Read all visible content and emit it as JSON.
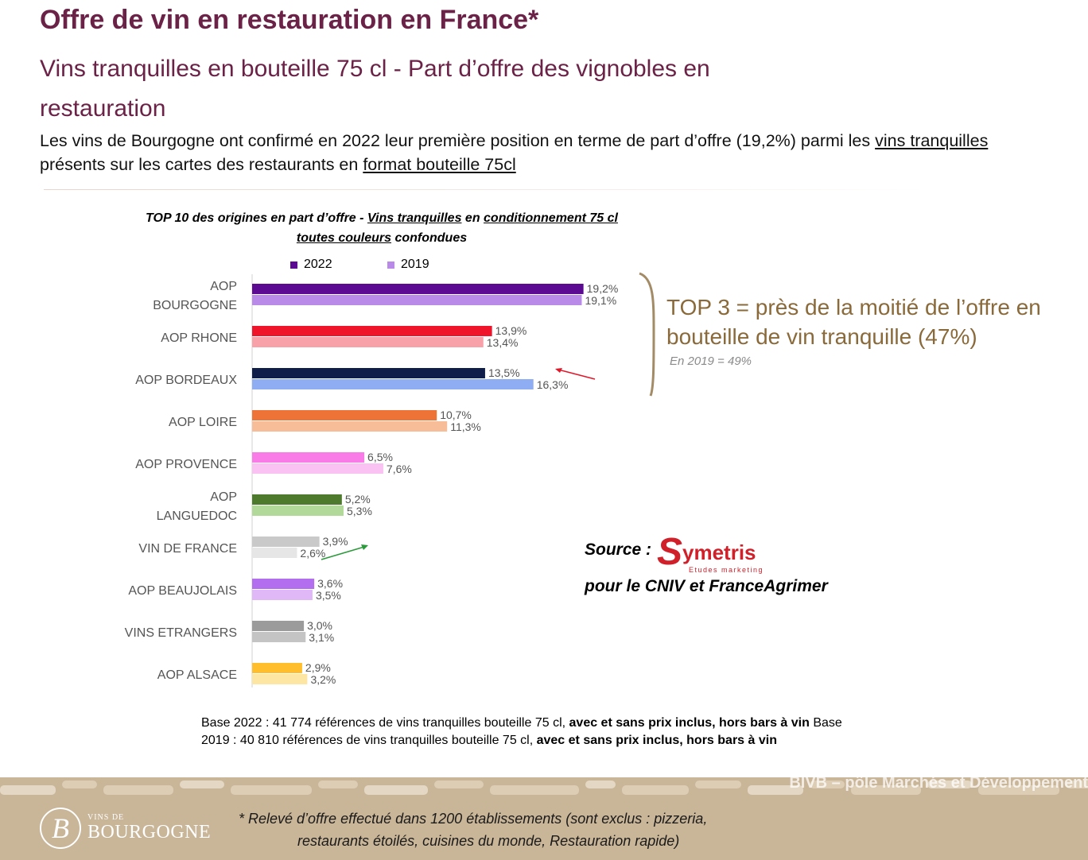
{
  "header": {
    "title": "Offre de vin en restauration en France*",
    "subtitle": "Vins tranquilles en bouteille 75 cl - Part d’offre des vignobles en restauration",
    "intro_1": "Les vins de Bourgogne ont confirmé en 2022 leur première position en terme de part d’offre (19,2%) parmi les ",
    "intro_u1": "vins tranquilles",
    "intro_2": " présents sur les cartes des restaurants en ",
    "intro_u2": "format bouteille 75cl"
  },
  "chart_title": {
    "part1": "TOP 10 des origines en part d’offre - ",
    "u1": "Vins tranquilles",
    "part2": " en ",
    "u2": "conditionnement 75 cl",
    "u3": "toutes couleurs",
    "part3": " confondues"
  },
  "chart_data": {
    "type": "bar",
    "orientation": "horizontal",
    "title": "TOP 10 des origines en part d’offre - Vins tranquilles en conditionnement 75 cl toutes couleurs confondues",
    "legend_position": "top",
    "categories": [
      "AOP BOURGOGNE",
      "AOP RHONE",
      "AOP BORDEAUX",
      "AOP LOIRE",
      "AOP PROVENCE",
      "AOP LANGUEDOC",
      "VIN DE FRANCE",
      "AOP BEAUJOLAIS",
      "VINS ETRANGERS",
      "AOP ALSACE"
    ],
    "category_lines": [
      [
        "AOP",
        "BOURGOGNE"
      ],
      [
        "AOP RHONE"
      ],
      [
        "AOP BORDEAUX"
      ],
      [
        "AOP LOIRE"
      ],
      [
        "AOP PROVENCE"
      ],
      [
        "AOP",
        "LANGUEDOC"
      ],
      [
        "VIN DE FRANCE"
      ],
      [
        "AOP BEAUJOLAIS"
      ],
      [
        "VINS ETRANGERS"
      ],
      [
        "AOP ALSACE"
      ]
    ],
    "series": [
      {
        "name": "2022",
        "values": [
          19.2,
          13.9,
          13.5,
          10.7,
          6.5,
          5.2,
          3.9,
          3.6,
          3.0,
          2.9
        ],
        "labels": [
          "19,2%",
          "13,9%",
          "13,5%",
          "10,7%",
          "6,5%",
          "5,2%",
          "3,9%",
          "3,6%",
          "3,0%",
          "2,9%"
        ]
      },
      {
        "name": "2019",
        "values": [
          19.1,
          13.4,
          16.3,
          11.3,
          7.6,
          5.3,
          2.6,
          3.5,
          3.1,
          3.2
        ],
        "labels": [
          "19,1%",
          "13,4%",
          "16,3%",
          "11,3%",
          "7,6%",
          "5,3%",
          "2,6%",
          "3,5%",
          "3,1%",
          "3,2%"
        ]
      }
    ],
    "colors_2022": [
      "#5b0a91",
      "#f0142a",
      "#0f1d4a",
      "#ee7336",
      "#f97be8",
      "#4e7a2e",
      "#c9c9c9",
      "#b36ef0",
      "#9b9b9b",
      "#ffbe2b"
    ],
    "colors_2019": [
      "#b98ae8",
      "#f8a1a9",
      "#8fadf2",
      "#f7bd98",
      "#f9c2f3",
      "#b2d99a",
      "#e6e6e6",
      "#e0b8f8",
      "#c4c4c4",
      "#fde6a4"
    ],
    "legend_colors": [
      "#5b0a91",
      "#b98ae8"
    ],
    "units": "%",
    "xlim": [
      0,
      20
    ]
  },
  "legend": {
    "label_2022": "2022",
    "label_2019": "2019"
  },
  "callout": {
    "top3": "TOP 3 = près de la moitié de l’offre en bouteille de vin tranquille (47%)",
    "note": "En 2019 = 49%",
    "brace_color": "#a38b66"
  },
  "source": {
    "label": "Source :",
    "logo_text": "ymetris",
    "logo_tagline": "Etudes marketing",
    "sub": "pour le CNIV et FranceAgrimer"
  },
  "base_note": {
    "a": "Base 2022 : 41 774 références de vins tranquilles bouteille 75 cl, ",
    "b": "avec et sans prix inclus, hors bars à vin",
    "c": " Base 2019 : 40 810 références de vins tranquilles bouteille 75 cl, ",
    "d": "avec et sans prix inclus, hors bars à vin"
  },
  "footer": {
    "tag": "BIVB – pôle Marchés et Développement",
    "brand_small": "VINS DE",
    "brand_big": "BOURGOGNE",
    "footnote_1": "* Relevé d’offre effectué dans 1200 établissements (sont exclus : pizzeria,",
    "footnote_2": "restaurants étoilés, cuisines du monde, Restauration rapide)"
  }
}
